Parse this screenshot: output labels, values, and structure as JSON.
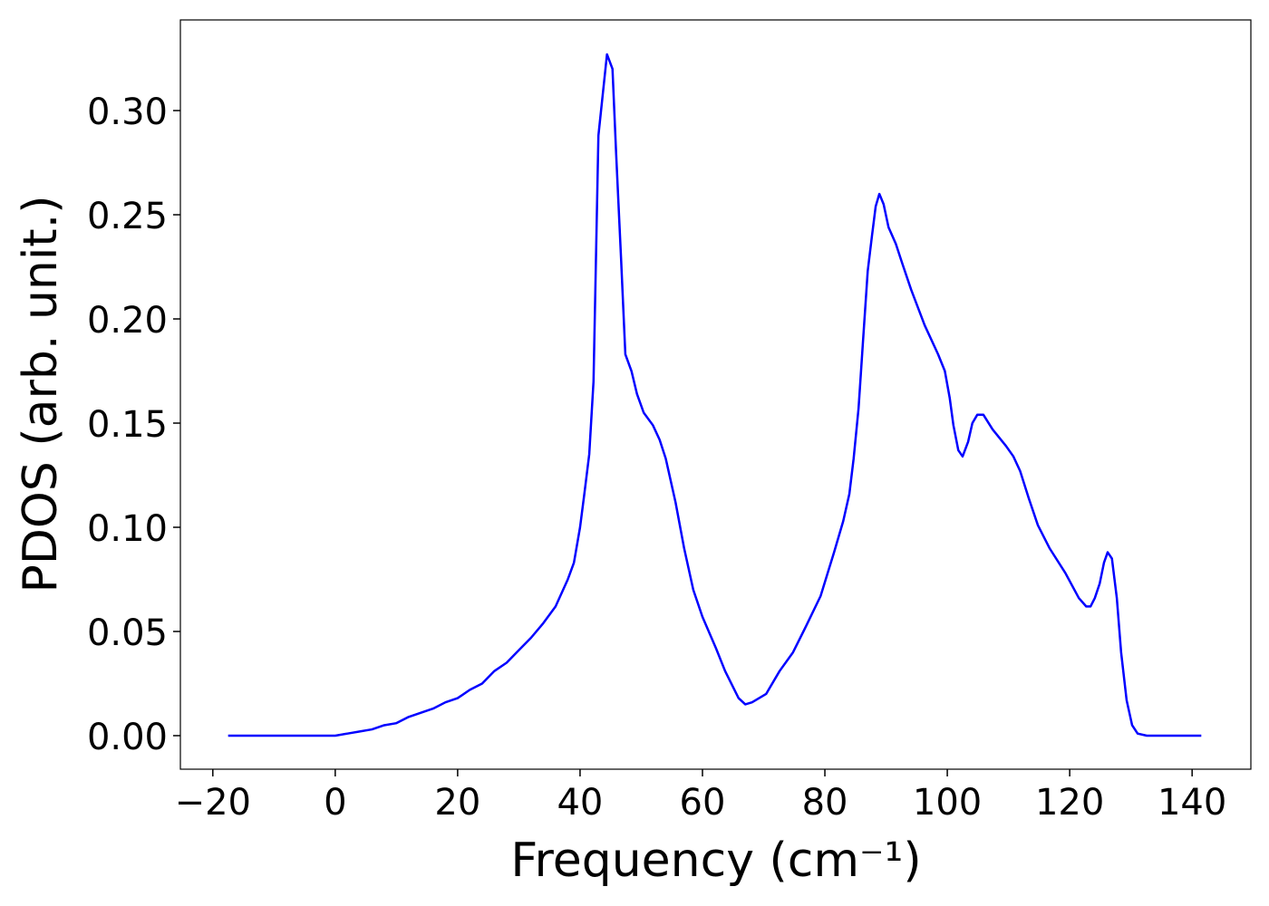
{
  "chart_data": {
    "type": "line",
    "xlabel": "Frequency (cm⁻¹)",
    "ylabel": "PDOS (arb. unit.)",
    "xlim": [
      -25.3,
      149.6
    ],
    "ylim": [
      -0.0161,
      0.3435
    ],
    "xticks": [
      {
        "value": -20,
        "label": "−20"
      },
      0,
      20,
      40,
      60,
      80,
      100,
      120,
      140
    ],
    "yticks": [
      {
        "value": 0,
        "label": "0.00"
      },
      {
        "value": 0.05,
        "label": "0.05"
      },
      {
        "value": 0.1,
        "label": "0.10"
      },
      {
        "value": 0.15,
        "label": "0.15"
      },
      {
        "value": 0.2,
        "label": "0.20"
      },
      {
        "value": 0.25,
        "label": "0.25"
      },
      {
        "value": 0.3,
        "label": "0.30"
      }
    ],
    "x": [
      -17.5,
      -10,
      -5,
      0,
      2,
      4,
      6,
      8,
      10,
      12,
      14,
      16,
      18,
      20,
      22,
      24,
      26,
      28,
      30,
      32,
      34,
      36,
      38,
      39,
      40,
      40.7,
      41.5,
      42.2,
      43,
      44.4,
      45.3,
      45.9,
      46.7,
      47.4,
      48.4,
      49.3,
      50.4,
      51.9,
      53,
      54,
      55.6,
      57,
      58.5,
      60,
      62.2,
      63.7,
      65.9,
      67,
      68.1,
      70.4,
      72.6,
      74.8,
      77,
      79.3,
      81.5,
      83,
      84,
      84.7,
      85.5,
      86.2,
      87,
      87.7,
      88.3,
      88.9,
      89.6,
      90.4,
      91.6,
      92.6,
      94.1,
      96.3,
      98.5,
      99.6,
      100.4,
      101,
      101.8,
      102.5,
      103.4,
      104.1,
      104.9,
      105.9,
      107.4,
      109.6,
      110.8,
      111.9,
      113.3,
      114.8,
      116.7,
      119.3,
      121.5,
      122.7,
      123.4,
      124.1,
      124.9,
      125.6,
      126.2,
      126.9,
      127.7,
      128.4,
      129.3,
      130.2,
      131.1,
      132.6,
      141.5
    ],
    "series": [
      {
        "color": "#0000ff",
        "values": [
          0,
          0,
          0,
          0,
          0.001,
          0.002,
          0.003,
          0.005,
          0.006,
          0.009,
          0.011,
          0.013,
          0.016,
          0.018,
          0.022,
          0.025,
          0.031,
          0.035,
          0.041,
          0.047,
          0.054,
          0.062,
          0.075,
          0.083,
          0.1,
          0.116,
          0.135,
          0.17,
          0.288,
          0.327,
          0.32,
          0.279,
          0.229,
          0.183,
          0.175,
          0.164,
          0.155,
          0.149,
          0.142,
          0.133,
          0.112,
          0.09,
          0.07,
          0.057,
          0.042,
          0.031,
          0.018,
          0.015,
          0.016,
          0.02,
          0.031,
          0.04,
          0.053,
          0.067,
          0.088,
          0.103,
          0.116,
          0.133,
          0.157,
          0.188,
          0.223,
          0.24,
          0.254,
          0.26,
          0.255,
          0.244,
          0.236,
          0.227,
          0.214,
          0.197,
          0.183,
          0.175,
          0.162,
          0.149,
          0.137,
          0.134,
          0.141,
          0.15,
          0.154,
          0.154,
          0.147,
          0.139,
          0.134,
          0.127,
          0.114,
          0.101,
          0.09,
          0.078,
          0.066,
          0.062,
          0.062,
          0.066,
          0.073,
          0.083,
          0.088,
          0.085,
          0.066,
          0.04,
          0.017,
          0.005,
          0.001,
          0,
          0
        ]
      }
    ]
  }
}
